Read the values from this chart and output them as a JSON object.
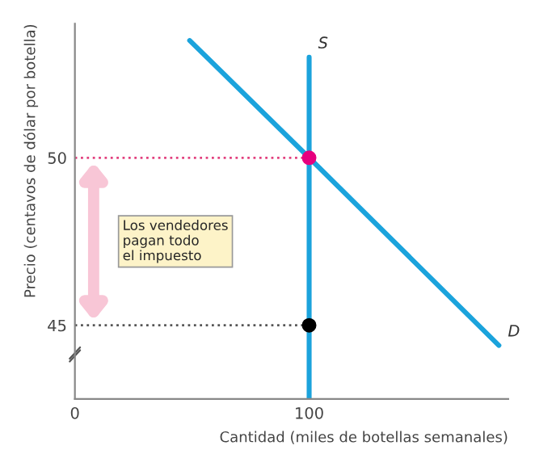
{
  "chart_data": {
    "type": "line",
    "xlabel": "Cantidad (miles de botellas semanales)",
    "ylabel": "Precio (centavos de dólar por botella)",
    "xlim": [
      0,
      185
    ],
    "ylim": [
      42.8,
      54
    ],
    "xticks": [
      0,
      100
    ],
    "yticks": [
      45,
      50
    ],
    "grid": false,
    "legend": false,
    "series": [
      {
        "color": "#1ba3dc",
        "x": [
          49,
          100,
          181
        ],
        "values": [
          53.5,
          50,
          44.4
        ]
      },
      {
        "color": "#1ba3dc",
        "x": [
          100,
          100
        ],
        "values": [
          42.8,
          53
        ]
      },
      {
        "color": "#e2407e",
        "line_style": "dotted",
        "x": [
          0,
          100
        ],
        "values": [
          50,
          50
        ]
      },
      {
        "color": "#555555",
        "line_style": "dotted",
        "x": [
          0,
          100
        ],
        "values": [
          45,
          45
        ]
      },
      {
        "type": "scatter",
        "color": "#e6007e",
        "x": [
          100
        ],
        "values": [
          50
        ]
      },
      {
        "type": "scatter",
        "color": "#000000",
        "x": [
          100
        ],
        "values": [
          45
        ]
      }
    ],
    "annotations": [
      {
        "text": "S",
        "x": 100,
        "y": 53
      },
      {
        "text": "D",
        "x": 181,
        "y": 44.4
      },
      "Los vendedores\npagan todo\nel impuesto"
    ]
  }
}
